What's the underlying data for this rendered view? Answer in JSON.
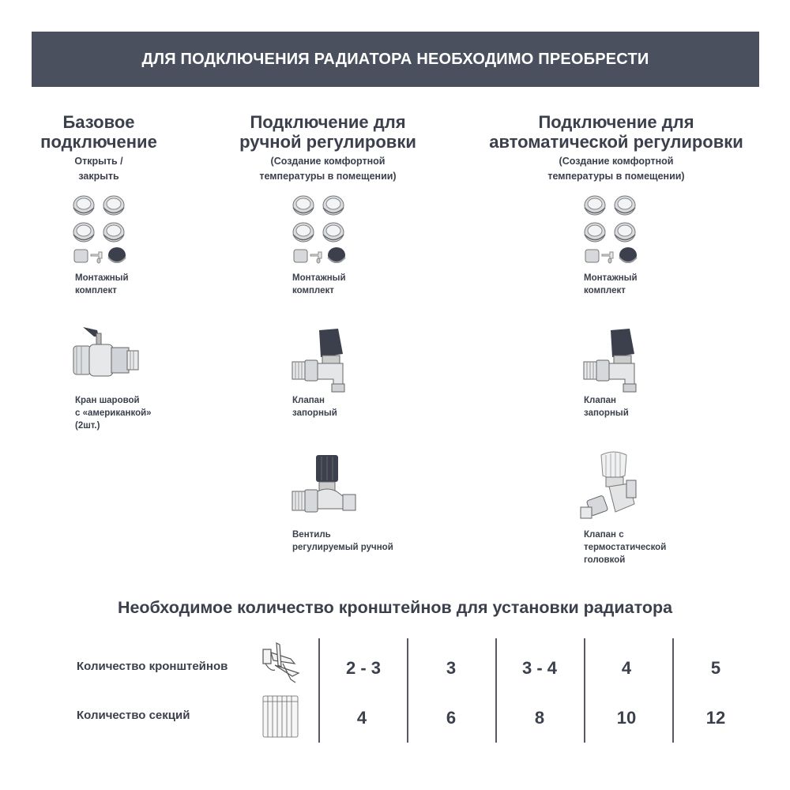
{
  "header": {
    "title": "ДЛЯ ПОДКЛЮЧЕНИЯ РАДИАТОРА НЕОБХОДИМО ПРЕОБРЕСТИ"
  },
  "columns": [
    {
      "title_line1": "Базовое",
      "title_line2": "подключение",
      "sub_line1": "Открыть /",
      "sub_line2": "закрыть",
      "items": [
        {
          "icon": "mounting-kit-icon",
          "line1": "Монтажный",
          "line2": "комплект"
        },
        {
          "icon": "ball-valve-icon",
          "line1": "Кран шаровой",
          "line2": "с «американкой»",
          "line3": "(2шт.)"
        }
      ]
    },
    {
      "title_line1": "Подключение для",
      "title_line2": "ручной регулировки",
      "sub_line1": "(Создание комфортной",
      "sub_line2": "температуры в помещении)",
      "items": [
        {
          "icon": "mounting-kit-icon",
          "line1": "Монтажный",
          "line2": "комплект"
        },
        {
          "icon": "shutoff-valve-icon",
          "line1": "Клапан",
          "line2": "запорный"
        },
        {
          "icon": "manual-valve-icon",
          "line1": "Вентиль",
          "line2": "регулируемый ручной"
        }
      ]
    },
    {
      "title_line1": "Подключение для",
      "title_line2": "автоматической регулировки",
      "sub_line1": "(Создание комфортной",
      "sub_line2": "температуры в помещении)",
      "items": [
        {
          "icon": "mounting-kit-icon",
          "line1": "Монтажный",
          "line2": "комплект"
        },
        {
          "icon": "shutoff-valve-icon",
          "line1": "Клапан",
          "line2": "запорный"
        },
        {
          "icon": "thermostatic-valve-icon",
          "line1": "Клапан с",
          "line2": "термостатической",
          "line3": "головкой"
        }
      ]
    }
  ],
  "brackets": {
    "title": "Необходимое количество кронштейнов для установки радиатора",
    "rows": [
      {
        "label": "Количество кронштейнов",
        "icon": "bracket-icon",
        "values": [
          "2 - 3",
          "3",
          "3 - 4",
          "4",
          "5"
        ]
      },
      {
        "label": "Количество секций",
        "icon": "radiator-icon",
        "values": [
          "4",
          "6",
          "8",
          "10",
          "12"
        ]
      }
    ]
  },
  "colors": {
    "header_bg": "#4a505e",
    "text": "#3b404c"
  }
}
